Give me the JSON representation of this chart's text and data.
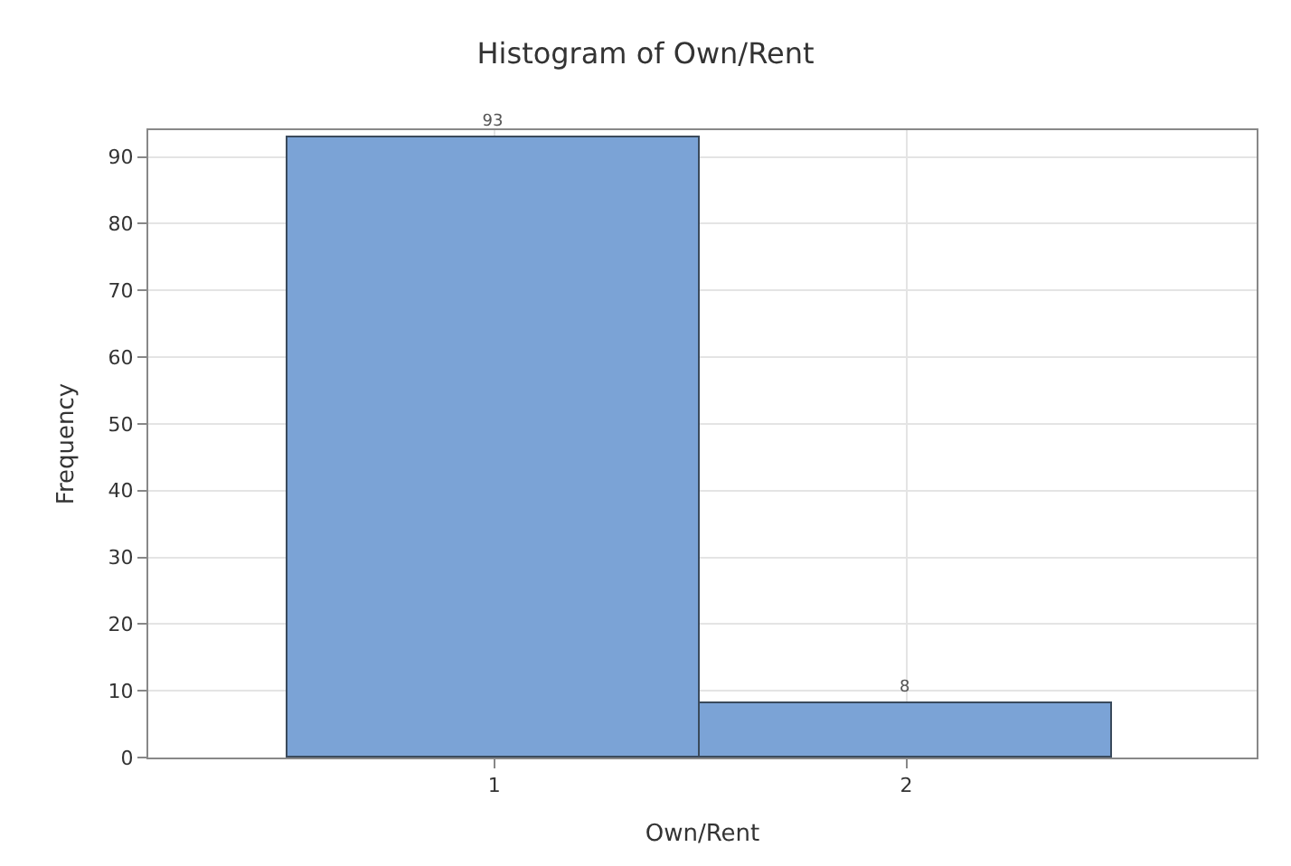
{
  "chart_data": {
    "type": "histogram",
    "title": "Histogram of Own/Rent",
    "xlabel": "Own/Rent",
    "ylabel": "Frequency",
    "bins": [
      0.5,
      1.5,
      2.5
    ],
    "values": [
      93,
      8
    ],
    "color": "#7ba3d6",
    "xlim": [
      0.16,
      2.85
    ],
    "xticks": [
      1,
      2
    ],
    "ylim": [
      0,
      94
    ],
    "yticks": [
      0,
      10,
      20,
      30,
      40,
      50,
      60,
      70,
      80,
      90
    ],
    "grid": true,
    "data_labels": true
  }
}
